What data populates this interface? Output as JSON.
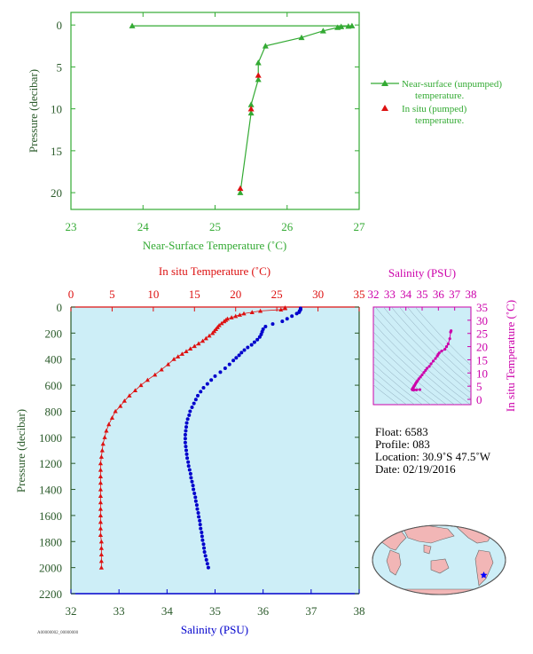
{
  "colors": {
    "green": "#33aa33",
    "axis_green": "#2a5a2a",
    "red": "#dd1111",
    "blue": "#0000cc",
    "magenta": "#cc00aa",
    "profile_bg": "#cdeef7",
    "map_land": "#f2b6b6",
    "map_ocean": "#cdeef7"
  },
  "chart_data": [
    {
      "type": "line",
      "id": "near_surface",
      "xlabel": "Near-Surface Temperature (˚C)",
      "ylabel": "Pressure (decibar)",
      "xlim": [
        23,
        27
      ],
      "ylim": [
        22,
        -1.5
      ],
      "xticks": [
        "23",
        "24",
        "25",
        "26",
        "27"
      ],
      "yticks": [
        "0",
        "5",
        "10",
        "15",
        "20"
      ],
      "legend_position": "right",
      "series": [
        {
          "name": "Near-surface (unpumped) temperature.",
          "marker": "triangle",
          "x": [
            23.85,
            26.9,
            26.85,
            26.75,
            26.7,
            26.5,
            26.2,
            25.7,
            25.6,
            25.6,
            25.5,
            25.5,
            25.35
          ],
          "y": [
            0.1,
            0.1,
            0.15,
            0.2,
            0.3,
            0.7,
            1.5,
            2.5,
            4.5,
            6.5,
            9.5,
            10.5,
            20
          ]
        },
        {
          "name": "In situ (pumped) temperature.",
          "marker": "triangle",
          "x": [
            25.6,
            25.5,
            25.35
          ],
          "y": [
            6,
            10,
            19.5
          ]
        }
      ]
    },
    {
      "type": "scatter",
      "id": "profile",
      "ylabel": "Pressure (decibar)",
      "yticks": [
        "0",
        "200",
        "400",
        "600",
        "800",
        "1000",
        "1200",
        "1400",
        "1600",
        "1800",
        "2000",
        "2200"
      ],
      "ylim": [
        0,
        2200
      ],
      "temperature_axis": {
        "label": "In situ Temperature (˚C)",
        "xlim": [
          0,
          35
        ],
        "ticks": [
          "0",
          "5",
          "10",
          "15",
          "20",
          "25",
          "30",
          "35"
        ]
      },
      "salinity_axis": {
        "label": "Salinity (PSU)",
        "xlim": [
          32,
          38
        ],
        "ticks": [
          "32",
          "33",
          "34",
          "35",
          "36",
          "37",
          "38"
        ]
      },
      "temperature_series": {
        "pressure": [
          5,
          10,
          20,
          30,
          40,
          50,
          60,
          70,
          80,
          90,
          100,
          110,
          125,
          140,
          155,
          170,
          185,
          200,
          220,
          240,
          260,
          280,
          300,
          320,
          340,
          360,
          380,
          400,
          440,
          480,
          520,
          560,
          600,
          640,
          680,
          720,
          760,
          800,
          850,
          900,
          950,
          1000,
          1050,
          1100,
          1150,
          1200,
          1250,
          1300,
          1350,
          1400,
          1450,
          1500,
          1550,
          1600,
          1650,
          1700,
          1750,
          1800,
          1850,
          1900,
          1950,
          2000
        ],
        "temperature": [
          26.0,
          26.0,
          25.5,
          23.0,
          22.0,
          21.0,
          20.5,
          20.0,
          19.5,
          19.0,
          18.8,
          18.6,
          18.3,
          18.0,
          17.8,
          17.6,
          17.4,
          17.2,
          16.8,
          16.4,
          16.0,
          15.5,
          15.0,
          14.5,
          14.0,
          13.5,
          13.0,
          12.5,
          11.8,
          11.0,
          10.2,
          9.3,
          8.5,
          7.8,
          7.1,
          6.5,
          6.0,
          5.4,
          5.0,
          4.6,
          4.3,
          4.1,
          3.9,
          3.8,
          3.7,
          3.6,
          3.6,
          3.6,
          3.6,
          3.6,
          3.6,
          3.6,
          3.6,
          3.6,
          3.6,
          3.6,
          3.6,
          3.7,
          3.7,
          3.7,
          3.7,
          3.7
        ]
      },
      "salinity_series": {
        "pressure": [
          10,
          20,
          30,
          40,
          50,
          70,
          90,
          110,
          130,
          150,
          170,
          190,
          210,
          230,
          250,
          270,
          290,
          310,
          330,
          350,
          370,
          390,
          410,
          440,
          470,
          500,
          530,
          560,
          590,
          620,
          650,
          680,
          710,
          740,
          770,
          800,
          830,
          860,
          890,
          920,
          950,
          980,
          1010,
          1040,
          1070,
          1100,
          1130,
          1160,
          1190,
          1220,
          1250,
          1280,
          1310,
          1340,
          1370,
          1400,
          1430,
          1460,
          1490,
          1520,
          1550,
          1580,
          1610,
          1640,
          1670,
          1700,
          1730,
          1760,
          1790,
          1820,
          1850,
          1880,
          1910,
          1940,
          1970,
          2000
        ],
        "salinity": [
          36.78,
          36.78,
          36.76,
          36.75,
          36.7,
          36.6,
          36.5,
          36.4,
          36.2,
          36.05,
          36.0,
          35.98,
          35.96,
          35.93,
          35.88,
          35.82,
          35.76,
          35.68,
          35.61,
          35.55,
          35.5,
          35.44,
          35.38,
          35.3,
          35.21,
          35.11,
          35.0,
          34.92,
          34.84,
          34.76,
          34.7,
          34.64,
          34.6,
          34.56,
          34.52,
          34.48,
          34.46,
          34.43,
          34.41,
          34.4,
          34.39,
          34.38,
          34.38,
          34.38,
          34.39,
          34.4,
          34.41,
          34.42,
          34.44,
          34.45,
          34.47,
          34.49,
          34.5,
          34.52,
          34.54,
          34.55,
          34.57,
          34.59,
          34.6,
          34.62,
          34.63,
          34.65,
          34.66,
          34.68,
          34.69,
          34.7,
          34.72,
          34.73,
          34.74,
          34.76,
          34.77,
          34.78,
          34.8,
          34.82,
          34.84,
          34.86
        ]
      }
    },
    {
      "type": "scatter",
      "id": "ts_diagram",
      "xlabel": "Salinity (PSU)",
      "ylabel": "In situ Temperature (˚C)",
      "xlim": [
        32,
        38
      ],
      "ylim": [
        -2,
        35
      ],
      "xticks": [
        "32",
        "33",
        "34",
        "35",
        "36",
        "37",
        "38"
      ],
      "yticks": [
        "0",
        "5",
        "10",
        "15",
        "20",
        "25",
        "30",
        "35"
      ],
      "temperature": [
        26.0,
        25.5,
        23.0,
        21.0,
        20.0,
        19.0,
        18.3,
        17.6,
        17.0,
        16.4,
        15.5,
        14.5,
        13.5,
        12.5,
        11.8,
        11.0,
        10.2,
        9.3,
        8.5,
        7.8,
        7.1,
        6.5,
        6.0,
        5.4,
        5.0,
        4.6,
        4.3,
        4.1,
        3.9,
        3.8,
        3.7,
        3.6,
        3.6,
        3.6,
        3.7
      ],
      "salinity": [
        36.78,
        36.75,
        36.7,
        36.6,
        36.5,
        36.4,
        36.2,
        36.05,
        35.98,
        35.93,
        35.82,
        35.68,
        35.55,
        35.44,
        35.3,
        35.21,
        35.11,
        35.0,
        34.9,
        34.8,
        34.72,
        34.65,
        34.6,
        34.55,
        34.5,
        34.47,
        34.44,
        34.42,
        34.4,
        34.39,
        34.39,
        34.42,
        34.5,
        34.65,
        34.86
      ]
    }
  ],
  "info": {
    "float": "Float:  6583",
    "profile": "Profile:  083",
    "location": "Location:  30.9˚S  47.5˚W",
    "date": "Date:  02/19/2016"
  },
  "footer_stamp": "A00000002_00000000"
}
